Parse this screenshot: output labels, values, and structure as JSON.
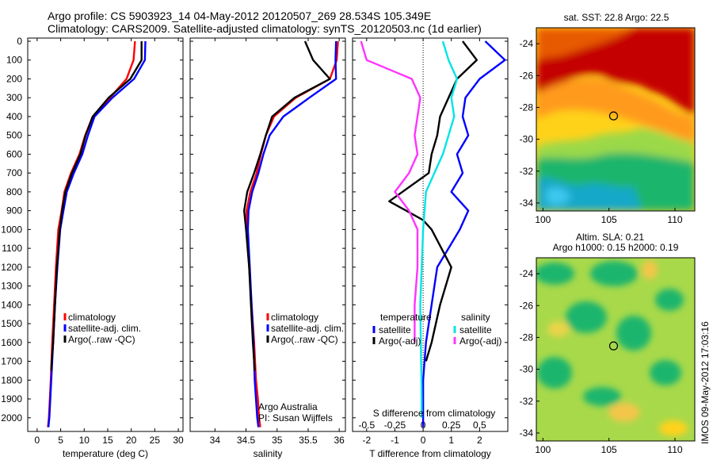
{
  "header": {
    "title_line1": "Argo profile: CS 5903923_14 04-May-2012 20120507_269 28.534S 105.349E",
    "title_line2": "Climatology: CARS2009. Satellite-adjusted climatology: synTS_20120503.nc (1d earlier)"
  },
  "colors": {
    "climatology": "#ff0000",
    "satellite": "#0000ff",
    "argo": "#000000",
    "sat_salinity": "#00e5e5",
    "argo_salinity": "#ff33ff"
  },
  "depth_axis": {
    "ticks": [
      0,
      100,
      200,
      300,
      400,
      500,
      600,
      700,
      800,
      900,
      1000,
      1100,
      1200,
      1300,
      1400,
      1500,
      1600,
      1700,
      1800,
      1900,
      2000
    ],
    "ylim": [
      2060,
      0
    ]
  },
  "chart_data": [
    {
      "type": "line",
      "xlabel": "temperature (deg C)",
      "xlim": [
        -2,
        31
      ],
      "xticks": [
        0,
        5,
        10,
        15,
        20,
        25,
        30
      ],
      "legend": [
        "climatology",
        "satellite-adj. clim.",
        "Argo(..raw -QC)"
      ],
      "series": [
        {
          "name": "climatology",
          "color": "#ff0000",
          "x": [
            20.8,
            20.5,
            19.0,
            15.5,
            11.8,
            10.2,
            9.0,
            7.2,
            5.8,
            5.2,
            4.5,
            4.0,
            3.6,
            3.2,
            2.9,
            2.7,
            2.5,
            2.3
          ],
          "y": [
            0,
            100,
            200,
            300,
            400,
            500,
            600,
            700,
            800,
            900,
            1000,
            1200,
            1400,
            1600,
            1800,
            1900,
            2000,
            2050
          ]
        },
        {
          "name": "satellite-adj. clim.",
          "color": "#0000ff",
          "x": [
            23.0,
            22.9,
            20.6,
            16.0,
            12.2,
            10.8,
            9.6,
            7.8,
            6.3,
            5.6,
            4.9,
            4.3,
            3.8,
            3.4,
            3.0,
            2.8,
            2.6,
            2.4
          ],
          "y": [
            0,
            100,
            200,
            300,
            400,
            500,
            600,
            700,
            800,
            900,
            1000,
            1200,
            1400,
            1600,
            1800,
            1900,
            2000,
            2050
          ]
        },
        {
          "name": "Argo(..raw -QC)",
          "color": "#000000",
          "x": [
            22.2,
            22.2,
            19.8,
            15.2,
            11.8,
            10.3,
            9.2,
            7.4,
            6.0,
            5.3,
            4.8,
            4.2,
            3.8,
            3.4,
            3.1,
            3.0
          ],
          "y": [
            0,
            100,
            200,
            300,
            400,
            500,
            600,
            700,
            800,
            900,
            1000,
            1200,
            1400,
            1600,
            1700,
            1750
          ]
        }
      ]
    },
    {
      "type": "line",
      "xlabel": "salinity",
      "xlim": [
        33.6,
        36.1
      ],
      "xticks": [
        34,
        34.5,
        35,
        35.5,
        36
      ],
      "legend": [
        "climatology",
        "satellite-adj. clim.",
        "Argo(..raw -QC)"
      ],
      "series": [
        {
          "name": "climatology",
          "color": "#ff0000",
          "x": [
            35.98,
            35.96,
            35.85,
            35.3,
            34.95,
            34.82,
            34.74,
            34.67,
            34.57,
            34.51,
            34.51,
            34.55,
            34.59,
            34.63,
            34.66,
            34.69,
            34.71,
            34.73
          ],
          "y": [
            0,
            100,
            200,
            300,
            400,
            500,
            600,
            700,
            800,
            900,
            1000,
            1200,
            1400,
            1600,
            1800,
            1900,
            2000,
            2050
          ]
        },
        {
          "name": "satellite-adj. clim.",
          "color": "#0000ff",
          "x": [
            35.95,
            35.94,
            35.95,
            35.52,
            35.1,
            34.88,
            34.78,
            34.7,
            34.6,
            34.54,
            34.53,
            34.56,
            34.59,
            34.62,
            34.64,
            34.66,
            34.68,
            34.7
          ],
          "y": [
            0,
            100,
            200,
            300,
            400,
            500,
            600,
            700,
            800,
            900,
            1000,
            1200,
            1400,
            1600,
            1800,
            1900,
            2000,
            2050
          ]
        },
        {
          "name": "Argo(..raw -QC)",
          "color": "#000000",
          "x": [
            35.45,
            35.58,
            35.85,
            35.28,
            34.92,
            34.82,
            34.73,
            34.63,
            34.52,
            34.47,
            34.5,
            34.55,
            34.58,
            34.61,
            34.63,
            34.64
          ],
          "y": [
            0,
            100,
            200,
            300,
            400,
            500,
            600,
            700,
            800,
            900,
            1000,
            1200,
            1400,
            1600,
            1700,
            1750
          ]
        }
      ]
    },
    {
      "type": "line",
      "xlabel": "T difference from climatology",
      "top_xlabel": "S difference from climatology",
      "xlim": [
        -2.5,
        3.0
      ],
      "xticks": [
        -2,
        -1,
        0,
        1,
        2
      ],
      "top_xticks": [
        "-0.5",
        "-0.25",
        "0",
        "0.25",
        "0.5"
      ],
      "legend": {
        "temperature_heading": "temperature",
        "salinity_heading": "salinity",
        "items": [
          "satellite",
          "Argo(-adj)",
          "satellite",
          "Argo(-adj)"
        ]
      },
      "series": [
        {
          "name": "satellite",
          "group": "temperature",
          "color": "#0000ff",
          "x": [
            2.2,
            2.9,
            2.0,
            1.5,
            1.4,
            1.6,
            1.2,
            1.4,
            1.0,
            1.6,
            1.3,
            0.5,
            0.3,
            0.1,
            0.0,
            0.0,
            0.0,
            0.0
          ],
          "y": [
            0,
            100,
            200,
            300,
            400,
            500,
            600,
            700,
            800,
            900,
            1000,
            1200,
            1400,
            1600,
            1800,
            1900,
            2000,
            2050
          ]
        },
        {
          "name": "Argo(-adj)",
          "group": "temperature",
          "color": "#000000",
          "x": [
            1.4,
            1.9,
            1.2,
            0.9,
            0.6,
            0.5,
            0.3,
            0.2,
            -1.2,
            0.0,
            0.3,
            1.0,
            0.6,
            0.3,
            0.1
          ],
          "y": [
            0,
            100,
            200,
            300,
            400,
            500,
            600,
            700,
            850,
            950,
            1000,
            1200,
            1400,
            1600,
            1700
          ]
        },
        {
          "name": "satellite",
          "group": "salinity",
          "color": "#00e5e5",
          "x": [
            0.7,
            0.9,
            1.2,
            1.0,
            1.1,
            0.9,
            0.7,
            0.4,
            0.1,
            0.05,
            0.0,
            -0.05,
            -0.1,
            -0.08,
            -0.06,
            -0.05,
            -0.05
          ],
          "y": [
            0,
            100,
            200,
            300,
            400,
            500,
            600,
            700,
            800,
            900,
            1000,
            1200,
            1400,
            1600,
            1800,
            1900,
            2000
          ]
        },
        {
          "name": "Argo(-adj)",
          "group": "salinity",
          "color": "#ff33ff",
          "x": [
            -2.2,
            -2.0,
            -0.4,
            -0.1,
            -0.2,
            -0.3,
            -0.2,
            -0.5,
            -1.0,
            -0.5,
            -0.2,
            -0.2,
            -0.3,
            -0.3
          ],
          "y": [
            0,
            100,
            200,
            300,
            400,
            500,
            600,
            700,
            800,
            900,
            1000,
            1200,
            1400,
            1600
          ]
        }
      ]
    }
  ],
  "annotations": {
    "org": "Argo Australia",
    "pi": "PI: Susan Wijffels",
    "timestamp": "IMOS 09-May-2012 17:03:16"
  },
  "maps": [
    {
      "title": "sat. SST: 22.8 Argo: 22.5",
      "lat_ticks": [
        "-24",
        "-26",
        "-28",
        "-30",
        "-32",
        "-34"
      ],
      "lon_ticks": [
        "100",
        "105",
        "110"
      ],
      "profile_lon": 105.349,
      "profile_lat": -28.534
    },
    {
      "title_line1": "Altim. SLA: 0.21",
      "title_line2": "Argo h1000: 0.15 h2000: 0.19",
      "lat_ticks": [
        "-24",
        "-26",
        "-28",
        "-30",
        "-32",
        "-34"
      ],
      "lon_ticks": [
        "100",
        "105",
        "110"
      ],
      "profile_lon": 105.349,
      "profile_lat": -28.534
    }
  ]
}
